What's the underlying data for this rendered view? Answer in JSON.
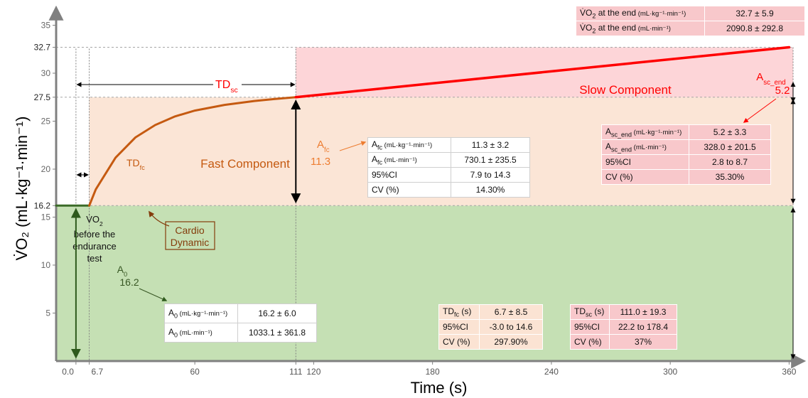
{
  "chart_data": {
    "type": "line",
    "title": "",
    "xlabel": "Time (s)",
    "ylabel": "V̇O₂ (mL·kg⁻¹·min⁻¹)",
    "xlim": [
      -10,
      362
    ],
    "ylim": [
      0,
      36
    ],
    "x_ticks": [
      0,
      6.7,
      60,
      111,
      120,
      180,
      240,
      300,
      360
    ],
    "x_tick_labels": [
      "0.0",
      "6.7",
      "60",
      "111",
      "120",
      "180",
      "240",
      "300",
      "360"
    ],
    "y_ticks": [
      5,
      10,
      15,
      16.2,
      20,
      25,
      27.5,
      30,
      32.7,
      35
    ],
    "y_tick_labels": [
      "5",
      "10",
      "15",
      "16.2",
      "20",
      "25",
      "27.5",
      "30",
      "32.7",
      "35"
    ],
    "series": [
      {
        "name": "",
        "color": "#3b6b28",
        "x": [
          -10,
          0,
          6.7
        ],
        "y": [
          16.2,
          16.2,
          16.2
        ]
      },
      {
        "name": "",
        "color": "#c55a11",
        "x": [
          6.7,
          10,
          20,
          30,
          40,
          50,
          60,
          75,
          90,
          100,
          111
        ],
        "y": [
          16.2,
          17.9,
          21.2,
          23.3,
          24.6,
          25.5,
          26.1,
          26.7,
          27.1,
          27.3,
          27.5
        ]
      },
      {
        "name": "",
        "color": "#ff0000",
        "x": [
          111,
          360
        ],
        "y": [
          27.5,
          32.7
        ]
      }
    ],
    "annotations": {
      "vo2_before": [
        "V̇O",
        "2",
        "before the",
        "endurance",
        "test"
      ],
      "a0": [
        "A",
        "0",
        "16.2"
      ],
      "cardio": [
        "Cardio",
        "Dynamic"
      ],
      "td_fc": [
        "TD",
        "fc"
      ],
      "fast_component": "Fast Component",
      "afc": [
        "A",
        "fc",
        "11.3"
      ],
      "td_sc": [
        "TD",
        "sc"
      ],
      "slow_component": "Slow Component",
      "asc_end": [
        "A",
        "sc_end",
        "5.2"
      ]
    },
    "colors": {
      "green_region": "#c5e0b4",
      "peach_region": "#fbe5d6",
      "pink_region": "#fdd5d8",
      "axis": "#808080"
    }
  },
  "tables": {
    "end": {
      "rows": [
        {
          "label": "V̇O",
          "sub": "2",
          "text": " at the end",
          "unit": " (mL·kg⁻¹·min⁻¹)",
          "value": "32.7 ± 5.9"
        },
        {
          "label": "V̇O",
          "sub": "2",
          "text": " at the end",
          "unit": " (mL·min⁻¹)",
          "value": "2090.8 ± 292.8"
        }
      ]
    },
    "asc": {
      "rows": [
        {
          "a": "A",
          "sub": "sc_end",
          "unit": " (mL·kg⁻¹·min⁻¹)",
          "value": "5.2 ± 3.3"
        },
        {
          "a": "A",
          "sub": "sc_end",
          "unit": " (mL·min⁻¹)",
          "value": "328.0 ± 201.5"
        },
        {
          "a": "95%CI",
          "sub": "",
          "unit": "",
          "value": "2.8 to 8.7"
        },
        {
          "a": "CV (%)",
          "sub": "",
          "unit": "",
          "value": "35.30%"
        }
      ]
    },
    "afc": {
      "rows": [
        {
          "a": "A",
          "sub": "fc",
          "unit": " (mL·kg⁻¹·min⁻¹)",
          "value": "11.3 ± 3.2"
        },
        {
          "a": "A",
          "sub": "fc",
          "unit": " (mL·min⁻¹)",
          "value": "730.1 ± 235.5"
        },
        {
          "a": "95%CI",
          "sub": "",
          "unit": "",
          "value": "7.9 to 14.3"
        },
        {
          "a": "CV (%)",
          "sub": "",
          "unit": "",
          "value": "14.30%"
        }
      ]
    },
    "a0": {
      "rows": [
        {
          "a": "A",
          "sub": "0",
          "unit": " (mL·kg⁻¹·min⁻¹)",
          "value": "16.2 ± 6.0"
        },
        {
          "a": "A",
          "sub": "0",
          "unit": " (mL·min⁻¹)",
          "value": "1033.1 ± 361.8"
        }
      ]
    },
    "tdfc": {
      "rows": [
        {
          "a": "TD",
          "sub": "fc",
          "unit": " (s)",
          "value": "6.7 ± 8.5"
        },
        {
          "a": "95%CI",
          "sub": "",
          "unit": "",
          "value": "-3.0 to 14.6"
        },
        {
          "a": "CV (%)",
          "sub": "",
          "unit": "",
          "value": "297.90%"
        }
      ]
    },
    "tdsc": {
      "rows": [
        {
          "a": "TD",
          "sub": "sc",
          "unit": " (s)",
          "value": "111.0 ± 19.3"
        },
        {
          "a": "95%CI",
          "sub": "",
          "unit": "",
          "value": "22.2 to 178.4"
        },
        {
          "a": "CV (%)",
          "sub": "",
          "unit": "",
          "value": "37%"
        }
      ]
    }
  }
}
